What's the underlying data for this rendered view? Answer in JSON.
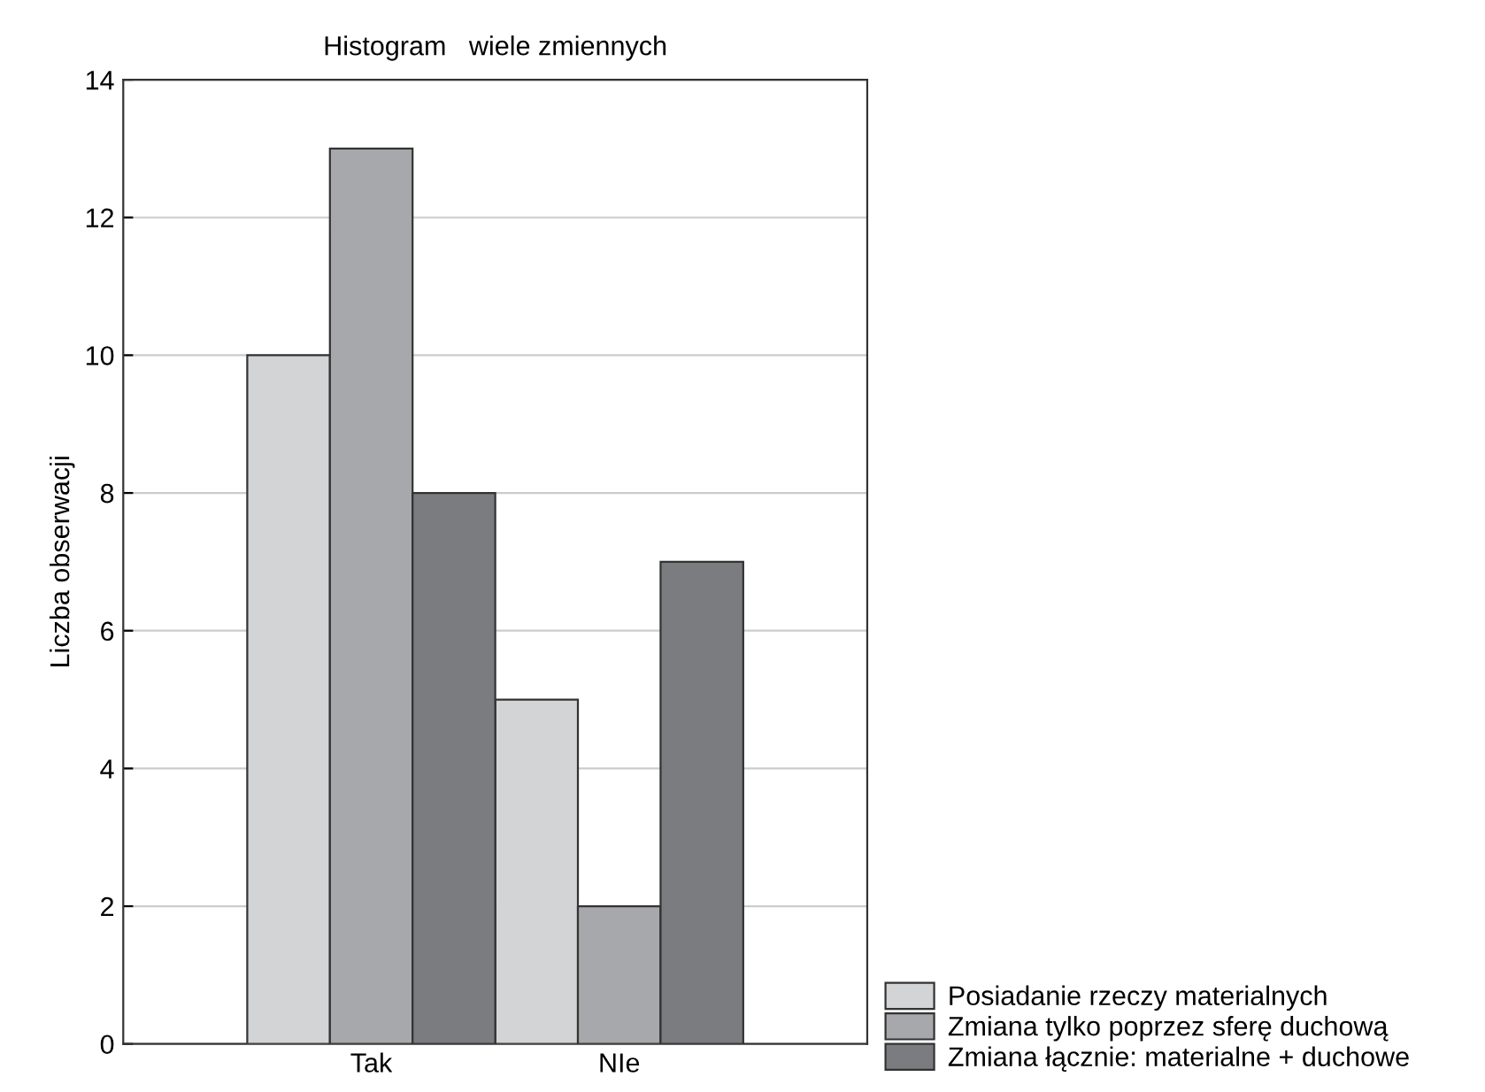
{
  "chart_data": {
    "type": "bar",
    "title": "Histogram   wiele zmiennych",
    "ylabel": "Liczba obserwacji",
    "categories": [
      "Tak",
      "NIe"
    ],
    "series": [
      {
        "name": "Posiadanie rzeczy materialnych",
        "color": "#d3d4d6",
        "values": [
          10,
          5
        ]
      },
      {
        "name": "Zmiana tylko poprzez sferę duchową",
        "color": "#a7a8ab",
        "values": [
          13,
          2
        ]
      },
      {
        "name": "Zmiana łącznie: materialne + duchowe",
        "color": "#7b7c80",
        "values": [
          8,
          7
        ]
      }
    ],
    "ylim": [
      0,
      14
    ],
    "yticks": [
      0,
      2,
      4,
      6,
      8,
      10,
      12,
      14
    ],
    "grid": "y",
    "legend": "bottom right"
  }
}
